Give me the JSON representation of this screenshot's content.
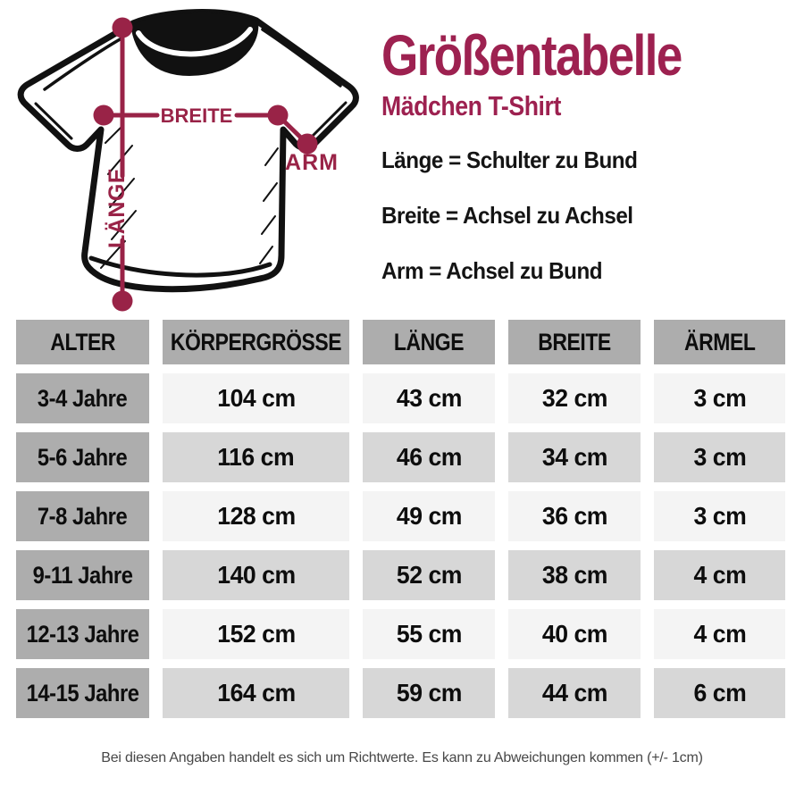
{
  "title": "Größentabelle",
  "subtitle": "Mädchen T-Shirt",
  "definitions": [
    "Länge = Schulter zu Bund",
    "Breite = Achsel zu Achsel",
    "Arm = Achsel zu Bund"
  ],
  "diagram": {
    "breite_label": "BREITE",
    "arm_label": "ARM",
    "laenge_label": "LÄNGE"
  },
  "table": {
    "headers": [
      "ALTER",
      "KÖRPERGRÖSSE",
      "LÄNGE",
      "BREITE",
      "ÄRMEL"
    ],
    "rows": [
      [
        "3-4 Jahre",
        "104 cm",
        "43 cm",
        "32 cm",
        "3 cm"
      ],
      [
        "5-6 Jahre",
        "116 cm",
        "46 cm",
        "34 cm",
        "3 cm"
      ],
      [
        "7-8 Jahre",
        "128 cm",
        "49 cm",
        "36 cm",
        "3 cm"
      ],
      [
        "9-11 Jahre",
        "140 cm",
        "52 cm",
        "38 cm",
        "4 cm"
      ],
      [
        "12-13 Jahre",
        "152 cm",
        "55 cm",
        "40 cm",
        "4 cm"
      ],
      [
        "14-15 Jahre",
        "164 cm",
        "59 cm",
        "44 cm",
        "6 cm"
      ]
    ]
  },
  "footer": "Bei diesen Angaben handelt es sich um Richtwerte. Es kann zu Abweichungen kommen (+/- 1cm)",
  "colors": {
    "accent_text": "#9d2150",
    "accent_diagram": "#992347",
    "header_bg": "#adadad",
    "label_bg": "#adadad",
    "row_light": "#f4f4f4",
    "row_dark": "#d7d7d7",
    "footer_text": "#474747",
    "shirt_ink": "#111111"
  }
}
